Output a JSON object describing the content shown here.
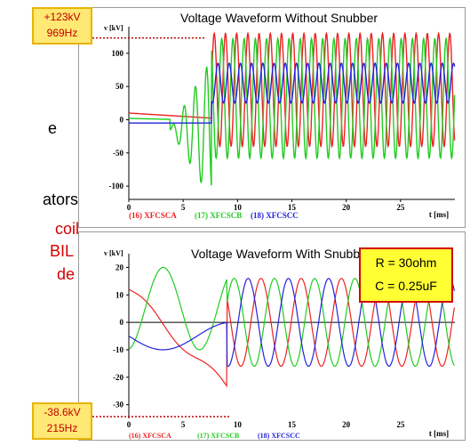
{
  "left_text": {
    "line1": "e",
    "line2": "ators",
    "line3": "coil",
    "line4": "BIL",
    "line5": "de"
  },
  "callouts": {
    "top": {
      "line1": "+123kV",
      "line2": "969Hz"
    },
    "bottom": {
      "line1": "-38.6kV",
      "line2": "215Hz"
    }
  },
  "snubber_params": {
    "r": "R = 30ohm",
    "c": "C = 0.25uF"
  },
  "colors": {
    "phase_a": "#ee2222",
    "phase_b": "#22cc22",
    "phase_c": "#2222dd",
    "callout_text": "#c00000"
  },
  "chart_data": [
    {
      "type": "line",
      "title": "Voltage Waveform Without Snubber",
      "ylabel": "v [kV]",
      "xlabel": "t [ms]",
      "xlim": [
        0,
        30
      ],
      "ylim": [
        -120,
        140
      ],
      "x_ticks": [
        0,
        5,
        10,
        15,
        20,
        25
      ],
      "y_ticks": [
        -100,
        -50,
        0,
        50,
        100
      ],
      "series": [
        {
          "name": "(16) XFCSCA",
          "color": "#ee2222",
          "phase": 0,
          "pre_event": "Constant value of 10 kV decreasing towards 0 kV until 7.5 ms",
          "post_event": "Oscillation with range -40 to 130 kV, frequency about 969 Hz"
        },
        {
          "name": "(17) XFCSCB",
          "color": "#22cc22",
          "phase": 2.09,
          "pre_event": "Low until 4 ms, then oscillation of growing amplitude between -110 and 80 kV",
          "post_event": "Oscillation with range -60 to 123 kV, frequency about 969 Hz"
        },
        {
          "name": "(18) XFCSCC",
          "color": "#2222dd",
          "phase": 4.19,
          "pre_event": "About -5 kV until 7.5 ms",
          "post_event": "Oscillation with range 25 to 85 kV, frequency about 969 Hz"
        }
      ],
      "event_time_ms": 7.6,
      "legend_position": "bottom"
    },
    {
      "type": "line",
      "title": "Voltage Waveform With Snubber",
      "ylabel": "v [kV]",
      "xlabel": "t [ms]",
      "xlim": [
        0,
        30
      ],
      "ylim": [
        -35,
        25
      ],
      "x_ticks": [
        0,
        5,
        10,
        15,
        20,
        25
      ],
      "y_ticks": [
        -30,
        -20,
        -10,
        0,
        10,
        20
      ],
      "series": [
        {
          "name": "(16) XFCSCA",
          "color": "#ee2222",
          "phase": 0
        },
        {
          "name": "(17) XFCSCB",
          "color": "#22cc22",
          "phase": 2.09
        },
        {
          "name": "(18) XFCSCC",
          "color": "#2222dd",
          "phase": 4.19
        }
      ],
      "frequency_hz": 215,
      "amplitude_kv": 16,
      "min_value_kv": -38.6,
      "legend_position": "bottom"
    }
  ]
}
